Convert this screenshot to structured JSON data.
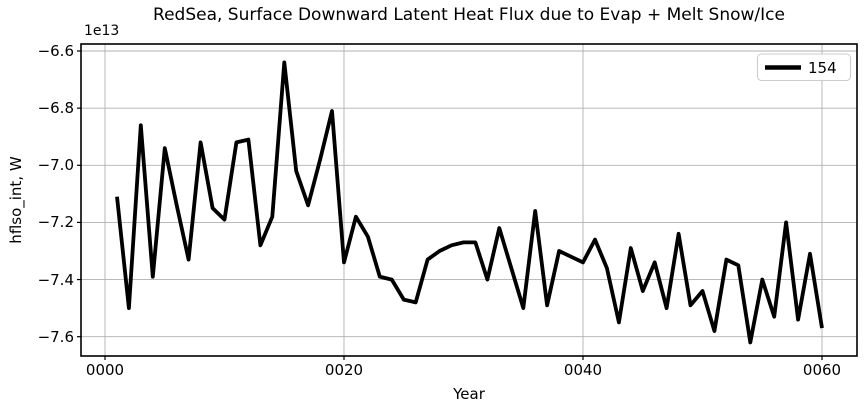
{
  "figure": {
    "title": "RedSea, Surface Downward Latent Heat Flux due to Evap + Melt Snow/Ice",
    "offset_text": "1e13",
    "xlabel": "Year",
    "ylabel": "hflso_int, W",
    "legend": {
      "label": "154"
    }
  },
  "colors": {
    "line": "#000000",
    "grid": "#b0b0b0",
    "spine": "#000000",
    "tick": "#000000",
    "legend_border": "#cccccc",
    "legend_bg": "#ffffff",
    "text": "#000000"
  },
  "chart_data": {
    "type": "line",
    "title": "RedSea, Surface Downward Latent Heat Flux due to Evap + Melt Snow/Ice",
    "xlabel": "Year",
    "ylabel": "hflso_int, W",
    "y_unit_offset": "1e13",
    "grid": true,
    "legend_position": "upper right",
    "xlim": [
      -2,
      63
    ],
    "ylim": [
      -7.67,
      -6.58
    ],
    "x_ticks": [
      {
        "value": 0,
        "label": "0000"
      },
      {
        "value": 20,
        "label": "0020"
      },
      {
        "value": 40,
        "label": "0040"
      },
      {
        "value": 60,
        "label": "0060"
      }
    ],
    "y_ticks": [
      {
        "value": -6.6,
        "label": "−6.6"
      },
      {
        "value": -6.8,
        "label": "−6.8"
      },
      {
        "value": -7.0,
        "label": "−7.0"
      },
      {
        "value": -7.2,
        "label": "−7.2"
      },
      {
        "value": -7.4,
        "label": "−7.4"
      },
      {
        "value": -7.6,
        "label": "−7.6"
      }
    ],
    "series": [
      {
        "name": "154",
        "color": "#000000",
        "linewidth": 3.8,
        "x": [
          1,
          2,
          3,
          4,
          5,
          6,
          7,
          8,
          9,
          10,
          11,
          12,
          13,
          14,
          15,
          16,
          17,
          18,
          19,
          20,
          21,
          22,
          23,
          24,
          25,
          26,
          27,
          28,
          29,
          30,
          31,
          32,
          33,
          34,
          35,
          36,
          37,
          38,
          39,
          40,
          41,
          42,
          43,
          44,
          45,
          46,
          47,
          48,
          49,
          50,
          51,
          52,
          53,
          54,
          55,
          56,
          57,
          58,
          59,
          60
        ],
        "y": [
          -7.11,
          -7.5,
          -6.86,
          -7.39,
          -6.94,
          -7.14,
          -7.33,
          -6.92,
          -7.15,
          -7.19,
          -6.92,
          -6.91,
          -7.28,
          -7.18,
          -6.64,
          -7.02,
          -7.14,
          -6.98,
          -6.81,
          -7.34,
          -7.18,
          -7.25,
          -7.39,
          -7.4,
          -7.47,
          -7.48,
          -7.33,
          -7.3,
          -7.28,
          -7.27,
          -7.27,
          -7.4,
          -7.22,
          -7.36,
          -7.5,
          -7.16,
          -7.49,
          -7.3,
          -7.32,
          -7.34,
          -7.26,
          -7.36,
          -7.55,
          -7.29,
          -7.44,
          -7.34,
          -7.5,
          -7.24,
          -7.49,
          -7.44,
          -7.58,
          -7.33,
          -7.35,
          -7.62,
          -7.4,
          -7.53,
          -7.2,
          -7.54,
          -7.31,
          -7.57
        ]
      }
    ]
  }
}
